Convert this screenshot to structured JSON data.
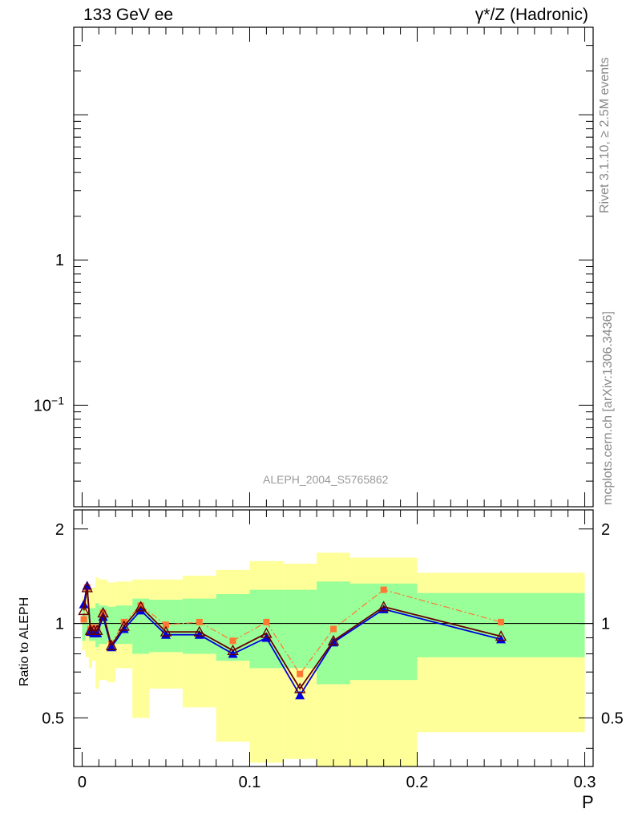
{
  "header": {
    "left_title": "133 GeV ee",
    "right_title": "γ*/Z (Hadronic)",
    "watermark": "ALEPH_2004_S5765862"
  },
  "side_text": {
    "rivet": "Rivet 3.1.10, ≥ 2.5M events",
    "mcplots": "mcplots.cern.ch [arXiv:1306.3436]"
  },
  "chart_data": [
    {
      "type": "line",
      "panel": "main",
      "yscale": "log",
      "ylim": [
        0.02,
        40
      ],
      "xlim": [
        -0.005,
        0.305
      ],
      "yticks": [
        {
          "v": 1,
          "label": "1"
        },
        {
          "v": 0.1,
          "label": "10",
          "sup": "−1"
        }
      ],
      "series": []
    },
    {
      "type": "line",
      "panel": "ratio",
      "ylabel": "Ratio to ALEPH",
      "xlabel": "P",
      "yscale": "log",
      "ylim": [
        0.35,
        2.3
      ],
      "xlim": [
        -0.005,
        0.305
      ],
      "reference_line": 1.0,
      "yticks": [
        {
          "v": 0.5,
          "label": "0.5"
        },
        {
          "v": 1,
          "label": "1"
        },
        {
          "v": 2,
          "label": "2"
        }
      ],
      "xticks": [
        {
          "v": 0,
          "label": "0"
        },
        {
          "v": 0.1,
          "label": "0.1"
        },
        {
          "v": 0.2,
          "label": "0.2"
        },
        {
          "v": 0.3,
          "label": "0.3"
        }
      ],
      "bands": {
        "colors": {
          "outer": "#ffff99",
          "inner": "#99ff99"
        },
        "bins": [
          {
            "x0": 0.0,
            "x1": 0.002,
            "inner": [
              0.88,
              1.12
            ],
            "outer": [
              0.82,
              1.22
            ]
          },
          {
            "x0": 0.002,
            "x1": 0.004,
            "inner": [
              0.92,
              1.08
            ],
            "outer": [
              0.78,
              1.3
            ]
          },
          {
            "x0": 0.004,
            "x1": 0.006,
            "inner": [
              0.88,
              1.12
            ],
            "outer": [
              0.72,
              1.3
            ]
          },
          {
            "x0": 0.006,
            "x1": 0.008,
            "inner": [
              0.88,
              1.12
            ],
            "outer": [
              0.76,
              1.3
            ]
          },
          {
            "x0": 0.008,
            "x1": 0.01,
            "inner": [
              0.84,
              1.16
            ],
            "outer": [
              0.62,
              1.4
            ]
          },
          {
            "x0": 0.01,
            "x1": 0.015,
            "inner": [
              0.86,
              1.14
            ],
            "outer": [
              0.66,
              1.38
            ]
          },
          {
            "x0": 0.015,
            "x1": 0.02,
            "inner": [
              0.87,
              1.13
            ],
            "outer": [
              0.65,
              1.35
            ]
          },
          {
            "x0": 0.02,
            "x1": 0.03,
            "inner": [
              0.86,
              1.14
            ],
            "outer": [
              0.72,
              1.36
            ]
          },
          {
            "x0": 0.03,
            "x1": 0.04,
            "inner": [
              0.8,
              1.2
            ],
            "outer": [
              0.5,
              1.38
            ]
          },
          {
            "x0": 0.04,
            "x1": 0.06,
            "inner": [
              0.81,
              1.19
            ],
            "outer": [
              0.62,
              1.38
            ]
          },
          {
            "x0": 0.06,
            "x1": 0.08,
            "inner": [
              0.8,
              1.2
            ],
            "outer": [
              0.54,
              1.42
            ]
          },
          {
            "x0": 0.08,
            "x1": 0.1,
            "inner": [
              0.76,
              1.24
            ],
            "outer": [
              0.42,
              1.48
            ]
          },
          {
            "x0": 0.1,
            "x1": 0.12,
            "inner": [
              0.72,
              1.28
            ],
            "outer": [
              0.36,
              1.58
            ]
          },
          {
            "x0": 0.12,
            "x1": 0.14,
            "inner": [
              0.72,
              1.28
            ],
            "outer": [
              0.37,
              1.55
            ]
          },
          {
            "x0": 0.14,
            "x1": 0.16,
            "inner": [
              0.64,
              1.36
            ],
            "outer": [
              0.35,
              1.68
            ]
          },
          {
            "x0": 0.16,
            "x1": 0.2,
            "inner": [
              0.66,
              1.34
            ],
            "outer": [
              0.35,
              1.62
            ]
          },
          {
            "x0": 0.2,
            "x1": 0.3,
            "inner": [
              0.78,
              1.25
            ],
            "outer": [
              0.45,
              1.45
            ]
          }
        ]
      },
      "series": [
        {
          "color": "#ff7733",
          "dash": "dashdot",
          "marker": "square",
          "points": [
            [
              0.001,
              1.03
            ],
            [
              0.003,
              1.3
            ],
            [
              0.005,
              0.96
            ],
            [
              0.007,
              0.97
            ],
            [
              0.009,
              0.96
            ],
            [
              0.0125,
              1.08
            ],
            [
              0.0175,
              0.86
            ],
            [
              0.025,
              1.01
            ],
            [
              0.035,
              1.14
            ],
            [
              0.05,
              0.99
            ],
            [
              0.07,
              1.01
            ],
            [
              0.09,
              0.88
            ],
            [
              0.11,
              1.01
            ],
            [
              0.13,
              0.69
            ],
            [
              0.15,
              0.96
            ],
            [
              0.18,
              1.28
            ],
            [
              0.25,
              1.01
            ]
          ]
        },
        {
          "color": "#0000dd",
          "dash": "solid",
          "marker": "triangle",
          "points": [
            [
              0.001,
              1.15
            ],
            [
              0.003,
              1.32
            ],
            [
              0.005,
              0.94
            ],
            [
              0.007,
              0.93
            ],
            [
              0.009,
              0.93
            ],
            [
              0.0125,
              1.05
            ],
            [
              0.0175,
              0.84
            ],
            [
              0.025,
              0.96
            ],
            [
              0.035,
              1.1
            ],
            [
              0.05,
              0.92
            ],
            [
              0.07,
              0.92
            ],
            [
              0.09,
              0.8
            ],
            [
              0.11,
              0.9
            ],
            [
              0.13,
              0.59
            ],
            [
              0.15,
              0.87
            ],
            [
              0.18,
              1.11
            ],
            [
              0.25,
              0.89
            ]
          ]
        },
        {
          "color": "#660000",
          "dash": "solid",
          "marker": "open-triangle",
          "points": [
            [
              0.001,
              1.1
            ],
            [
              0.003,
              1.3
            ],
            [
              0.005,
              0.95
            ],
            [
              0.007,
              0.95
            ],
            [
              0.009,
              0.95
            ],
            [
              0.0125,
              1.08
            ],
            [
              0.0175,
              0.85
            ],
            [
              0.025,
              0.98
            ],
            [
              0.035,
              1.13
            ],
            [
              0.05,
              0.94
            ],
            [
              0.07,
              0.94
            ],
            [
              0.09,
              0.82
            ],
            [
              0.11,
              0.93
            ],
            [
              0.13,
              0.62
            ],
            [
              0.15,
              0.88
            ],
            [
              0.18,
              1.13
            ],
            [
              0.25,
              0.91
            ]
          ]
        }
      ]
    }
  ]
}
